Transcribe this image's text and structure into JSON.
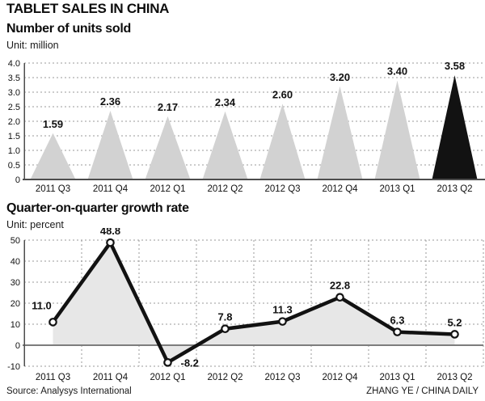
{
  "page": {
    "title": "TABLET SALES IN CHINA"
  },
  "footer": {
    "source": "Source: Analysys International",
    "credit": "ZHANG YE / CHINA DAILY"
  },
  "colors": {
    "bar_fill": "#d2d2d2",
    "bar_highlight": "#121212",
    "area_fill": "#e7e7e7",
    "line": "#121212",
    "marker_fill": "#ffffff",
    "grid": "#9a9a9a",
    "axis": "#4d4d4d",
    "zero_line": "#7d7d7d",
    "text": "#111111"
  },
  "chart_data": [
    {
      "type": "bar",
      "bar_shape": "triangle",
      "title": "Number of units sold",
      "unit_label": "Unit: million",
      "categories": [
        "2011 Q3",
        "2011 Q4",
        "2012 Q1",
        "2012 Q2",
        "2012 Q3",
        "2012 Q4",
        "2013 Q1",
        "2013 Q2"
      ],
      "values": [
        1.59,
        2.36,
        2.17,
        2.34,
        2.6,
        3.2,
        3.4,
        3.58
      ],
      "value_labels": [
        "1.59",
        "2.36",
        "2.17",
        "2.34",
        "2.60",
        "3.20",
        "3.40",
        "3.58"
      ],
      "highlight_index": 7,
      "highlight_category": "2013 Q2",
      "ylim": [
        0,
        4.0
      ],
      "yticks": [
        0,
        0.5,
        1.0,
        1.5,
        2.0,
        2.5,
        3.0,
        3.5,
        4.0
      ],
      "ytick_labels": [
        "0",
        "0.5",
        "1.0",
        "1.5",
        "2.0",
        "2.5",
        "3.0",
        "3.5",
        "4.0"
      ],
      "grid": "horizontal-dashed",
      "legend": null
    },
    {
      "type": "line",
      "title": "Quarter-on-quarter growth rate",
      "unit_label": "Unit: percent",
      "categories": [
        "2011 Q3",
        "2011 Q4",
        "2012 Q1",
        "2012 Q2",
        "2012 Q3",
        "2012 Q4",
        "2013 Q1",
        "2013 Q2"
      ],
      "values": [
        11.0,
        48.8,
        -8.2,
        7.8,
        11.3,
        22.8,
        6.3,
        5.2
      ],
      "value_labels": [
        "11.0",
        "48.8",
        "-8.2",
        "7.8",
        "11.3",
        "22.8",
        "6.3",
        "5.2"
      ],
      "ylim": [
        -10,
        50
      ],
      "yticks": [
        -10,
        0,
        10,
        20,
        30,
        40,
        50
      ],
      "ytick_labels": [
        "-10",
        "0",
        "10",
        "20",
        "30",
        "40",
        "50"
      ],
      "area_fill": true,
      "markers": "open-circle",
      "grid": "both-dashed",
      "legend": null
    }
  ]
}
